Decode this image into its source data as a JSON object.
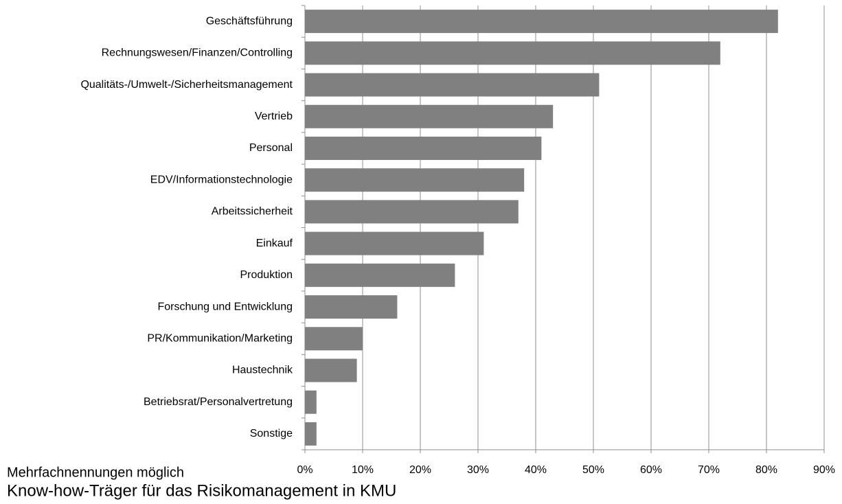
{
  "chart_data": {
    "type": "bar",
    "orientation": "horizontal",
    "title": "Know-how-Träger für das Risikomanagement in KMU",
    "note": "Mehrfachnennungen möglich",
    "categories": [
      "Geschäftsführung",
      "Rechnungswesen/Finanzen/Controlling",
      "Qualitäts-/Umwelt-/Sicherheitsmanagement",
      "Vertrieb",
      "Personal",
      "EDV/Informationstechnologie",
      "Arbeitssicherheit",
      "Einkauf",
      "Produktion",
      "Forschung und Entwicklung",
      "PR/Kommunikation/Marketing",
      "Haustechnik",
      "Betriebsrat/Personalvertretung",
      "Sonstige"
    ],
    "values": [
      82,
      72,
      51,
      43,
      41,
      38,
      37,
      31,
      26,
      16,
      10,
      9,
      2,
      2
    ],
    "color": "#808080",
    "xlim": [
      0,
      90
    ],
    "xticks": [
      {
        "value": 0,
        "label": "0%"
      },
      {
        "value": 10,
        "label": "10%"
      },
      {
        "value": 20,
        "label": "20%"
      },
      {
        "value": 30,
        "label": "30%"
      },
      {
        "value": 40,
        "label": "40%"
      },
      {
        "value": 50,
        "label": "50%"
      },
      {
        "value": 60,
        "label": "60%"
      },
      {
        "value": 70,
        "label": "70%"
      },
      {
        "value": 80,
        "label": "80%"
      },
      {
        "value": 90,
        "label": "90%"
      }
    ],
    "grid": true
  }
}
